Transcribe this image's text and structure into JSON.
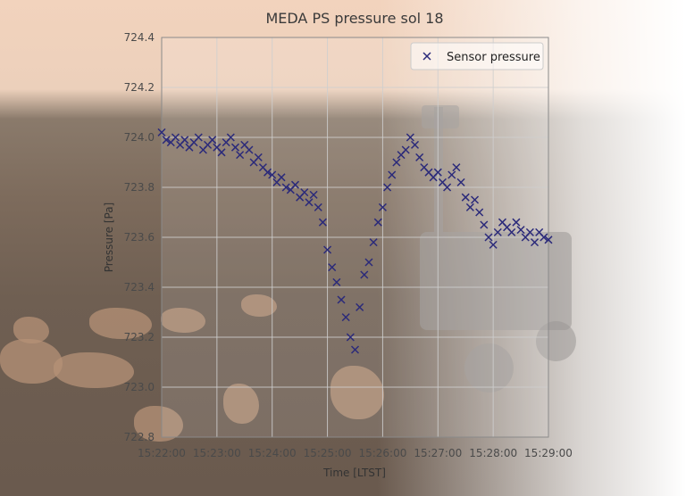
{
  "chart_data": {
    "type": "scatter",
    "title": "MEDA PS pressure sol 18",
    "xlabel": "Time [LTST]",
    "ylabel": "Pressure [Pa]",
    "x_ticks": [
      "15:22:00",
      "15:23:00",
      "15:24:00",
      "15:25:00",
      "15:26:00",
      "15:27:00",
      "15:28:00",
      "15:29:00"
    ],
    "y_ticks": [
      "722.8",
      "723.0",
      "723.2",
      "723.4",
      "723.6",
      "723.8",
      "724.0",
      "724.2",
      "724.4"
    ],
    "xlim": [
      "15:22:00",
      "15:29:00"
    ],
    "ylim": [
      722.8,
      724.4
    ],
    "grid": true,
    "legend_position": "top-right",
    "series": [
      {
        "name": "Sensor pressure",
        "marker": "x",
        "color": "#2b2a7a",
        "x": [
          "15:22:00",
          "15:22:05",
          "15:22:10",
          "15:22:15",
          "15:22:20",
          "15:22:25",
          "15:22:30",
          "15:22:35",
          "15:22:40",
          "15:22:45",
          "15:22:50",
          "15:22:55",
          "15:23:00",
          "15:23:05",
          "15:23:10",
          "15:23:15",
          "15:23:20",
          "15:23:25",
          "15:23:30",
          "15:23:35",
          "15:23:40",
          "15:23:45",
          "15:23:50",
          "15:23:55",
          "15:24:00",
          "15:24:05",
          "15:24:10",
          "15:24:15",
          "15:24:20",
          "15:24:25",
          "15:24:30",
          "15:24:35",
          "15:24:40",
          "15:24:45",
          "15:24:50",
          "15:24:55",
          "15:25:00",
          "15:25:05",
          "15:25:10",
          "15:25:15",
          "15:25:20",
          "15:25:25",
          "15:25:30",
          "15:25:35",
          "15:25:40",
          "15:25:45",
          "15:25:50",
          "15:25:55",
          "15:26:00",
          "15:26:05",
          "15:26:10",
          "15:26:15",
          "15:26:20",
          "15:26:25",
          "15:26:30",
          "15:26:35",
          "15:26:40",
          "15:26:45",
          "15:26:50",
          "15:26:55",
          "15:27:00",
          "15:27:05",
          "15:27:10",
          "15:27:15",
          "15:27:20",
          "15:27:25",
          "15:27:30",
          "15:27:35",
          "15:27:40",
          "15:27:45",
          "15:27:50",
          "15:27:55",
          "15:28:00",
          "15:28:05",
          "15:28:10",
          "15:28:15",
          "15:28:20",
          "15:28:25",
          "15:28:30",
          "15:28:35",
          "15:28:40",
          "15:28:45",
          "15:28:50",
          "15:28:55",
          "15:29:00"
        ],
        "y": [
          724.02,
          723.99,
          723.98,
          724.0,
          723.97,
          723.99,
          723.96,
          723.98,
          724.0,
          723.95,
          723.97,
          723.99,
          723.96,
          723.94,
          723.98,
          724.0,
          723.96,
          723.93,
          723.97,
          723.95,
          723.9,
          723.92,
          723.88,
          723.86,
          723.85,
          723.82,
          723.84,
          723.8,
          723.79,
          723.81,
          723.76,
          723.78,
          723.74,
          723.77,
          723.72,
          723.66,
          723.55,
          723.48,
          723.42,
          723.35,
          723.28,
          723.2,
          723.15,
          723.32,
          723.45,
          723.5,
          723.58,
          723.66,
          723.72,
          723.8,
          723.85,
          723.9,
          723.93,
          723.95,
          724.0,
          723.97,
          723.92,
          723.88,
          723.86,
          723.84,
          723.86,
          723.82,
          723.8,
          723.85,
          723.88,
          723.82,
          723.76,
          723.72,
          723.75,
          723.7,
          723.65,
          723.6,
          723.57,
          723.62,
          723.66,
          723.64,
          723.62,
          723.66,
          723.63,
          723.6,
          723.62,
          723.58,
          723.62,
          723.6,
          723.59
        ]
      }
    ]
  }
}
